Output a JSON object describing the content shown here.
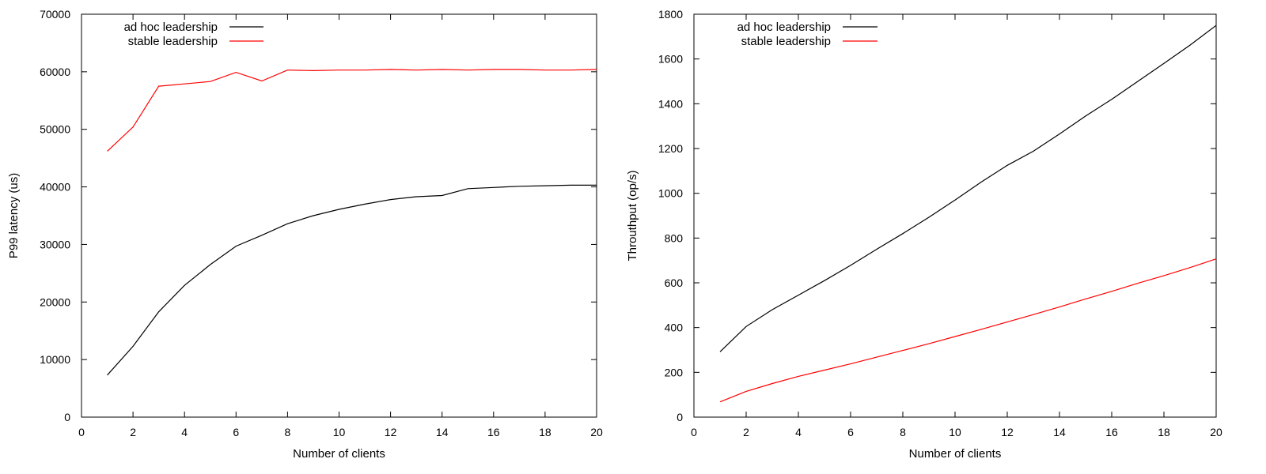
{
  "colors": {
    "ad_hoc": "#000000",
    "stable": "#ff0000",
    "axis": "#000000",
    "background": "#ffffff"
  },
  "chart_data": [
    {
      "type": "line",
      "xlabel": "Number of clients",
      "ylabel": "P99 latency (us)",
      "xlim": [
        0,
        20
      ],
      "ylim": [
        0,
        70000
      ],
      "xticks": [
        0,
        2,
        4,
        6,
        8,
        10,
        12,
        14,
        16,
        18,
        20
      ],
      "yticks": [
        0,
        10000,
        20000,
        30000,
        40000,
        50000,
        60000,
        70000
      ],
      "grid": false,
      "legend": "top-left",
      "x": [
        1,
        2,
        3,
        4,
        5,
        6,
        7,
        8,
        9,
        10,
        11,
        12,
        13,
        14,
        15,
        16,
        17,
        18,
        19,
        20
      ],
      "series": [
        {
          "name": "ad hoc leadership",
          "color": "#000000",
          "values": [
            7300,
            12300,
            18300,
            22900,
            26500,
            29700,
            31600,
            33600,
            35000,
            36100,
            37000,
            37800,
            38300,
            38500,
            39700,
            39900,
            40100,
            40200,
            40300,
            40300
          ]
        },
        {
          "name": "stable leadership",
          "color": "#ff0000",
          "values": [
            46200,
            50400,
            57500,
            57900,
            58300,
            59900,
            58400,
            60300,
            60200,
            60300,
            60300,
            60400,
            60300,
            60400,
            60300,
            60400,
            60400,
            60300,
            60300,
            60400
          ]
        }
      ]
    },
    {
      "type": "line",
      "xlabel": "Number of clients",
      "ylabel": "Throuthput (op/s)",
      "xlim": [
        0,
        20
      ],
      "ylim": [
        0,
        1800
      ],
      "xticks": [
        0,
        2,
        4,
        6,
        8,
        10,
        12,
        14,
        16,
        18,
        20
      ],
      "yticks": [
        0,
        200,
        400,
        600,
        800,
        1000,
        1200,
        1400,
        1600,
        1800
      ],
      "grid": false,
      "legend": "top-left",
      "x": [
        1,
        2,
        3,
        4,
        5,
        6,
        7,
        8,
        9,
        10,
        11,
        12,
        13,
        14,
        15,
        16,
        17,
        18,
        19,
        20
      ],
      "series": [
        {
          "name": "ad hoc leadership",
          "color": "#000000",
          "values": [
            292,
            405,
            480,
            545,
            610,
            678,
            750,
            820,
            893,
            970,
            1050,
            1125,
            1188,
            1265,
            1345,
            1420,
            1500,
            1580,
            1662,
            1750
          ]
        },
        {
          "name": "stable leadership",
          "color": "#ff0000",
          "values": [
            68,
            115,
            150,
            182,
            210,
            238,
            268,
            298,
            328,
            360,
            392,
            425,
            458,
            492,
            528,
            562,
            598,
            632,
            668,
            707
          ]
        }
      ]
    }
  ]
}
